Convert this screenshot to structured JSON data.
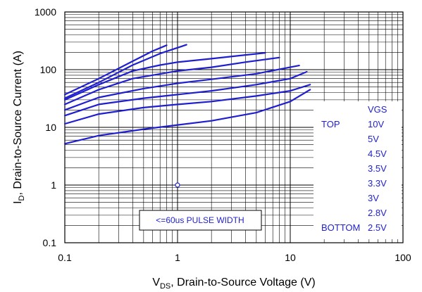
{
  "chart_data": {
    "type": "line",
    "x_scale": "log",
    "y_scale": "log",
    "xlim": [
      0.1,
      100
    ],
    "ylim": [
      0.1,
      1000
    ],
    "grid": true,
    "x_ticks": [
      "0.1",
      "1",
      "10",
      "100"
    ],
    "y_ticks": [
      "0.1",
      "1",
      "10",
      "100",
      "1000"
    ],
    "xlabel_main": "V",
    "xlabel_sub": "DS",
    "xlabel_rest": ", Drain-to-Source Voltage (V)",
    "ylabel_prefix": "I",
    "ylabel_sub": "D",
    "ylabel_rest": ", Drain-to-Source Current (A)",
    "line_color": "#1f1fd0",
    "legend": {
      "header": "VGS",
      "top_label": "TOP",
      "bottom_label": "BOTTOM",
      "entries": [
        "10V",
        "5V",
        "4.5V",
        "3.5V",
        "3.3V",
        "3V",
        "2.8V",
        "2.5V"
      ]
    },
    "annotation": "<=60us PULSE WIDTH",
    "marker": {
      "x": 1,
      "y": 1
    },
    "series": [
      {
        "x": [
          0.1,
          0.2,
          0.4,
          0.6,
          0.8
        ],
        "y": [
          37,
          70,
          140,
          210,
          265
        ]
      },
      {
        "x": [
          0.1,
          0.2,
          0.4,
          0.7,
          1.2
        ],
        "y": [
          32,
          60,
          120,
          190,
          270
        ]
      },
      {
        "x": [
          0.1,
          0.2,
          0.4,
          0.7,
          1.0,
          2.0,
          4.0,
          6.0
        ],
        "y": [
          30,
          55,
          95,
          120,
          135,
          155,
          180,
          195
        ]
      },
      {
        "x": [
          0.1,
          0.2,
          0.4,
          1.0,
          2.0,
          4.0,
          8.0
        ],
        "y": [
          25,
          45,
          70,
          95,
          110,
          135,
          162
        ]
      },
      {
        "x": [
          0.1,
          0.2,
          0.5,
          1.0,
          2.0,
          5.0,
          12.0
        ],
        "y": [
          20,
          33,
          47,
          58,
          68,
          85,
          118
        ]
      },
      {
        "x": [
          0.1,
          0.2,
          0.5,
          1.0,
          2.0,
          5.0,
          10.0,
          14.0
        ],
        "y": [
          16,
          25,
          32,
          37,
          43,
          55,
          70,
          92
        ]
      },
      {
        "x": [
          0.1,
          0.2,
          0.5,
          1.0,
          2.0,
          5.0,
          10.0,
          15.0
        ],
        "y": [
          11.5,
          17,
          22,
          25,
          28,
          35,
          43,
          55
        ]
      },
      {
        "x": [
          0.1,
          0.2,
          0.5,
          1.0,
          2.0,
          5.0,
          10.0,
          15.0
        ],
        "y": [
          5.2,
          7.2,
          9.3,
          11,
          13,
          18,
          28,
          45
        ]
      }
    ]
  }
}
